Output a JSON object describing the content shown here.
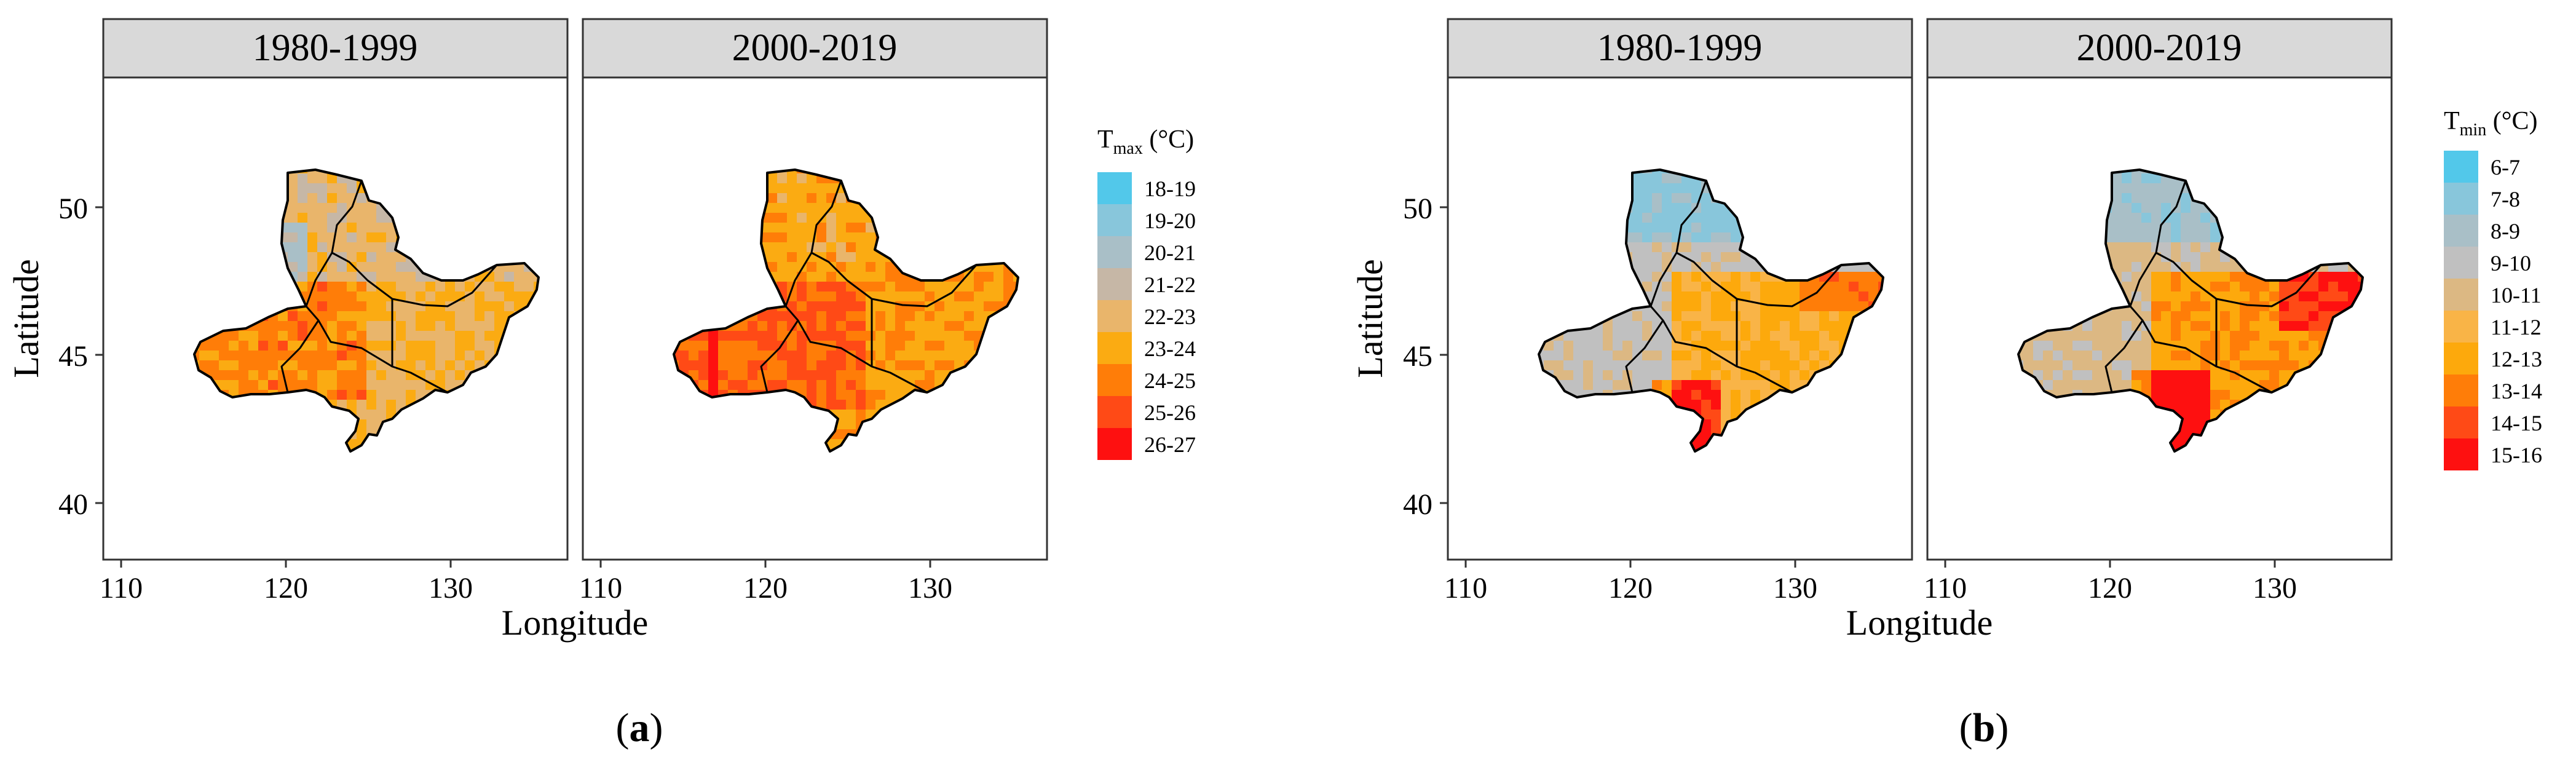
{
  "figure_a": {
    "panels": [
      {
        "strip": "1980-1999",
        "field": "tmax_early"
      },
      {
        "strip": "2000-2019",
        "field": "tmax_late"
      }
    ],
    "y_axis_title": "Latitude",
    "x_axis_title": "Longitude",
    "y_ticks": [
      "50",
      "45",
      "40"
    ],
    "x_ticks": [
      "110",
      "120",
      "130"
    ],
    "legend_title_base": "T",
    "legend_title_sub": "max",
    "legend_title_unit": " (°C)",
    "legend_items": [
      {
        "label": "18-19",
        "color": "#52c8ea"
      },
      {
        "label": "19-20",
        "color": "#88c6db"
      },
      {
        "label": "20-21",
        "color": "#a9bfc7"
      },
      {
        "label": "21-22",
        "color": "#c6b7a6"
      },
      {
        "label": "22-23",
        "color": "#e9b56b"
      },
      {
        "label": "23-24",
        "color": "#fbab12"
      },
      {
        "label": "24-25",
        "color": "#ff7d08"
      },
      {
        "label": "25-26",
        "color": "#ff4a16"
      },
      {
        "label": "26-27",
        "color": "#fe1010"
      }
    ],
    "caption": "a"
  },
  "figure_b": {
    "panels": [
      {
        "strip": "1980-1999",
        "field": "tmin_early"
      },
      {
        "strip": "2000-2019",
        "field": "tmin_late"
      }
    ],
    "y_axis_title": "Latitude",
    "x_axis_title": "Longitude",
    "y_ticks": [
      "50",
      "45",
      "40"
    ],
    "x_ticks": [
      "110",
      "120",
      "130"
    ],
    "legend_title_base": "T",
    "legend_title_sub": "min",
    "legend_title_unit": " (°C)",
    "legend_items": [
      {
        "label": "6-7",
        "color": "#52c8ea"
      },
      {
        "label": "7-8",
        "color": "#88c6db"
      },
      {
        "label": "8-9",
        "color": "#a9bfc7"
      },
      {
        "label": "9-10",
        "color": "#c0c0c0"
      },
      {
        "label": "10-11",
        "color": "#dcb883"
      },
      {
        "label": "11-12",
        "color": "#f9b447"
      },
      {
        "label": "12-13",
        "color": "#fda90c"
      },
      {
        "label": "13-14",
        "color": "#ff7d08"
      },
      {
        "label": "14-15",
        "color": "#ff4a16"
      },
      {
        "label": "15-16",
        "color": "#fe1010"
      }
    ],
    "caption": "b"
  },
  "colors": {
    "strip_fill": "#d9d9d9",
    "panel_border": "#333333",
    "outline": "#000000"
  }
}
